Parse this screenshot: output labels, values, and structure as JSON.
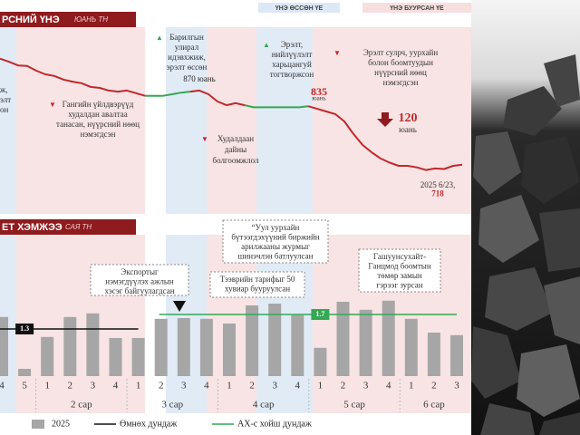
{
  "chart_data": [
    {
      "type": "line",
      "title": "РСНИЙ ҮНЭ",
      "unit": "ЮАНЬ ТН",
      "band_legend": [
        {
          "label": "ҮНЭ ӨССӨН ҮЕ",
          "color": "#dce8f5"
        },
        {
          "label": "ҮНЭ БУУРСАН ҮЕ",
          "color": "#f7dfdf"
        }
      ],
      "ylim": [
        700,
        960
      ],
      "values": [
        931,
        925,
        918,
        917,
        908,
        901,
        898,
        891,
        887,
        884,
        877,
        875,
        870,
        868,
        870,
        865,
        860,
        860,
        860,
        863,
        866,
        868,
        870,
        863,
        849,
        842,
        846,
        842,
        838,
        838,
        838,
        838,
        838,
        838,
        840,
        835,
        830,
        825,
        811,
        787,
        766,
        752,
        740,
        732,
        726,
        726,
        723,
        718,
        721,
        720,
        726,
        728
      ],
      "colors": [
        "#c0282d",
        "#c0282d",
        "#c0282d",
        "#c0282d",
        "#c0282d",
        "#c0282d",
        "#c0282d",
        "#c0282d",
        "#c0282d",
        "#c0282d",
        "#c0282d",
        "#c0282d",
        "#c0282d",
        "#c0282d",
        "#c0282d",
        "#c0282d",
        "#34a853",
        "#34a853",
        "#34a853",
        "#34a853",
        "#34a853",
        "#c0282d",
        "#c0282d",
        "#c0282d",
        "#c0282d",
        "#c0282d",
        "#c0282d",
        "#34a853",
        "#34a853",
        "#34a853",
        "#34a853",
        "#34a853",
        "#34a853",
        "#34a853",
        "#c0282d",
        "#c0282d",
        "#c0282d",
        "#c0282d",
        "#c0282d",
        "#c0282d",
        "#c0282d",
        "#c0282d",
        "#c0282d",
        "#c0282d",
        "#c0282d",
        "#c0282d",
        "#c0282d",
        "#c0282d",
        "#c0282d",
        "#c0282d",
        "#c0282d",
        "#c0282d"
      ],
      "value_labels": [
        null,
        null,
        null,
        null,
        null,
        null,
        null,
        null,
        null,
        null,
        null,
        null,
        null,
        null,
        null,
        null,
        null,
        null,
        null,
        null,
        null,
        null,
        "870 юань",
        null,
        null,
        null,
        null,
        null,
        null,
        null,
        null,
        null,
        null,
        null,
        null,
        "835",
        null,
        null,
        null,
        null,
        null,
        null,
        null,
        null,
        null,
        null,
        null,
        "718",
        null,
        null,
        null,
        null
      ],
      "annotations": [
        {
          "marker": "▲",
          "lines": [
            "Барилгын",
            "улирал",
            "идэвхжиж,",
            "эрэлт өссөн"
          ]
        },
        {
          "marker": "▲",
          "lines": [
            "Эрэлт,",
            "нийлүүлэлт",
            "харьцангуй",
            "тогтворжсон"
          ]
        },
        {
          "marker": "▼",
          "lines": [
            "Эрэлт сулрч, уурхайн",
            "болон боомтуудын",
            "нүүрсний нөөц",
            "нэмэгдсэн"
          ]
        },
        {
          "marker": "▼",
          "lines": [
            "Гангийн үйлдвэрүүд",
            "худалдан авалтаа",
            "танасан, нүүрсний нөөц",
            "нэмэгдсэн"
          ]
        },
        {
          "marker": "▼",
          "lines": [
            "Худалдаан",
            "дайны",
            "болгоомжлол"
          ]
        },
        {
          "lines": [
            "120",
            "юань"
          ]
        },
        {
          "lines": [
            "2025 6/23,"
          ]
        },
        {
          "lines": [
            "юань"
          ]
        },
        {
          "lines": [
            "ж,",
            "элт",
            "он"
          ]
        }
      ]
    },
    {
      "type": "bar",
      "title": "ЕТ ХЭМЖЭЭ",
      "unit": "САЯ ТН",
      "categories": [
        "4",
        "5",
        "1",
        "2",
        "3",
        "4",
        "1",
        "2",
        "3",
        "4",
        "1",
        "2",
        "3",
        "4",
        "1",
        "2",
        "3",
        "4",
        "1",
        "2",
        "3"
      ],
      "months": [
        null,
        null,
        "2 сар",
        "2 сар",
        "2 сар",
        "2 сар",
        "3 сар",
        "3 сар",
        "3 сар",
        "3 сар",
        "4 сар",
        "4 сар",
        "4 сар",
        "4 сар",
        "5 сар",
        "5 сар",
        "5 сар",
        "5 сар",
        "6 сар",
        "6 сар",
        "6 сар"
      ],
      "ylim": [
        0,
        2.5
      ],
      "series": [
        {
          "name": "2025",
          "type": "bar",
          "color": "#a6a6a6",
          "values": [
            1.63,
            0.2,
            1.08,
            1.63,
            1.73,
            1.05,
            1.05,
            1.58,
            1.6,
            1.58,
            1.45,
            1.95,
            2.0,
            1.68,
            0.78,
            2.05,
            1.83,
            2.08,
            1.58,
            1.2,
            1.13
          ]
        },
        {
          "name": "Өмнөх дундаж",
          "type": "line",
          "color": "#111111",
          "values": [
            1.3,
            1.3,
            1.3,
            1.3,
            1.3,
            1.3,
            1.3,
            null,
            null,
            null,
            null,
            null,
            null,
            null,
            null,
            null,
            null,
            null,
            null,
            null,
            null
          ]
        },
        {
          "name": "АХ-с хойш дундаж",
          "type": "line",
          "color": "#34a853",
          "values": [
            null,
            null,
            null,
            null,
            null,
            null,
            null,
            1.7,
            1.7,
            1.7,
            1.7,
            1.7,
            1.7,
            1.7,
            1.7,
            1.7,
            1.7,
            1.7,
            1.7,
            1.7,
            1.7
          ]
        }
      ],
      "annotations": [
        {
          "lines": [
            "Экспортыг",
            "нэмэгдүүлэх ажлын",
            "хэсэг байгуулагдсан"
          ]
        },
        {
          "lines": [
            "“Уул уурхайн",
            "бүтээгдэхүүний биржийн",
            "арилжааны журмыг",
            "шинэчлэн батлуулсан"
          ]
        },
        {
          "lines": [
            "Тээврийн тарифыг 50",
            "хувиар бууруулсан"
          ]
        },
        {
          "lines": [
            "Гашуунсухайт-",
            "Ганцмод боомтын",
            "төмөр замын",
            "гэрээг зурсан"
          ]
        }
      ]
    }
  ]
}
